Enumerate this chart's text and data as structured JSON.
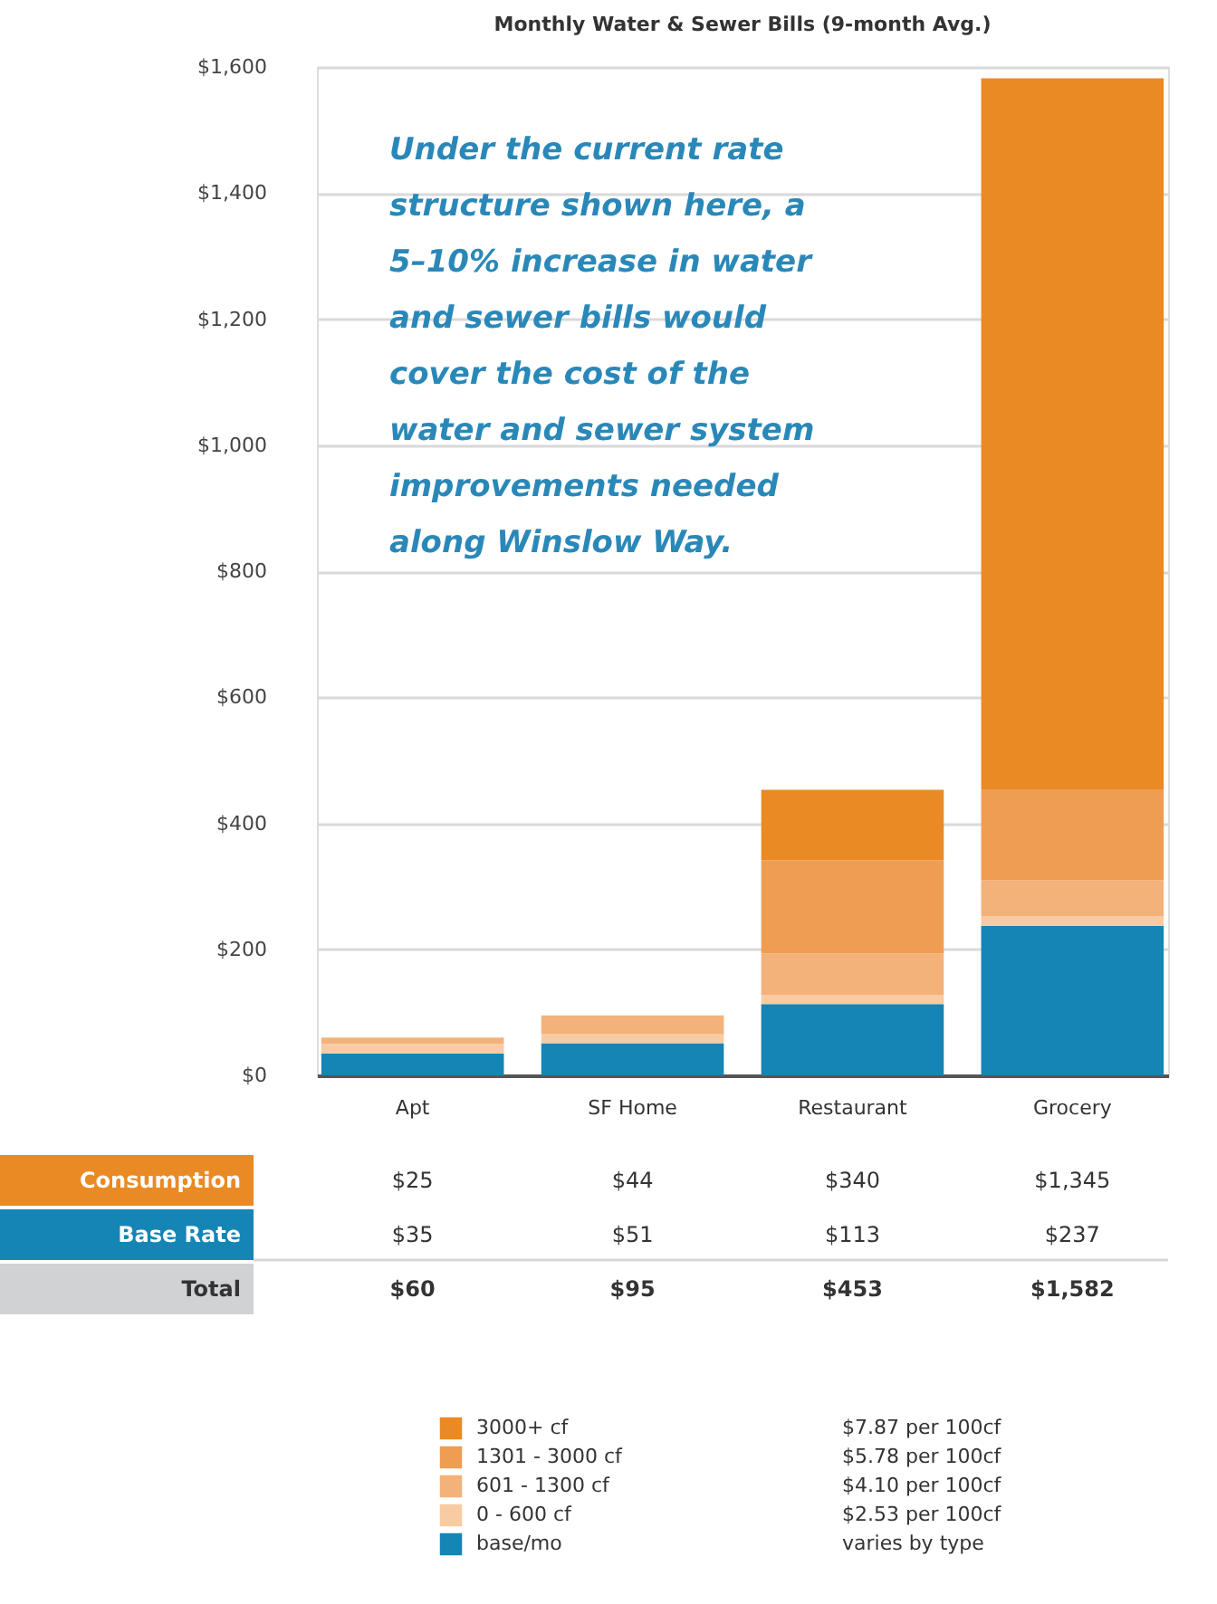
{
  "chart_data": [
    {
      "type": "bar",
      "title": "Monthly Water & Sewer Bills (9-month Avg.)",
      "stacked": true,
      "categories": [
        "Apt",
        "SF Home",
        "Restaurant",
        "Grocery"
      ],
      "series": [
        {
          "name": "base/mo",
          "color": "#1485b5",
          "values": [
            35,
            51,
            113,
            237
          ]
        },
        {
          "name": "0 - 600 cf",
          "color": "#f8cba3",
          "values": [
            15,
            15,
            15,
            15
          ]
        },
        {
          "name": "601 - 1300 cf",
          "color": "#f3b27a",
          "values": [
            10,
            29,
            65,
            58
          ]
        },
        {
          "name": "1301 - 3000 cf",
          "color": "#ef9d52",
          "values": [
            0,
            0,
            148,
            144
          ]
        },
        {
          "name": "3000+ cf",
          "color": "#ea8a24",
          "values": [
            0,
            0,
            112,
            1128
          ]
        }
      ],
      "ylim": [
        0,
        1600
      ],
      "yticks": [
        {
          "value": 0,
          "label": "$0"
        },
        {
          "value": 200,
          "label": "$200"
        },
        {
          "value": 400,
          "label": "$400"
        },
        {
          "value": 600,
          "label": "$600"
        },
        {
          "value": 800,
          "label": "$800"
        },
        {
          "value": 1000,
          "label": "$1,000"
        },
        {
          "value": 1200,
          "label": "$1,200"
        },
        {
          "value": 1400,
          "label": "$1,400"
        },
        {
          "value": 1600,
          "label": "$1,600"
        }
      ],
      "grid": "y",
      "legend": "bottom",
      "annotations": [
        "Under the current rate\nstructure shown here, a\n5–10% increase in water\nand sewer bills would\ncover the cost of the\nwater and sewer system\nimprovements needed\nalong Winslow Way.",
        "varies by type",
        "$2.53 per 100cf",
        "$4.10 per 100cf",
        "$5.78 per 100cf",
        "$7.87 per 100cf"
      ]
    },
    {
      "type": "other",
      "y_categories": [
        "Consumption",
        "Base Rate",
        "Total"
      ],
      "colors": [
        "#ea8a24",
        "#1485b5",
        "#d0d2d4"
      ],
      "cell_labels": [
        [
          "$25",
          "$44",
          "$340",
          "$1,345"
        ],
        [
          "$35",
          "$51",
          "$113",
          "$237"
        ],
        [
          "$60",
          "$95",
          "$453",
          "$1,582"
        ]
      ]
    }
  ]
}
